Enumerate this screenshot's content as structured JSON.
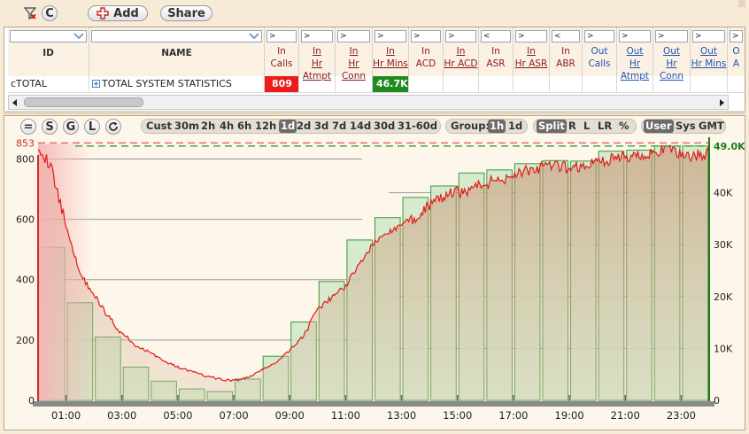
{
  "toolbar": {
    "clear_label": "C",
    "add_label": "Add",
    "share_label": "Share"
  },
  "grid": {
    "columns": [
      {
        "key": "id",
        "label": "ID",
        "filter": "",
        "style": "plain"
      },
      {
        "key": "name",
        "label": "NAME",
        "filter": "",
        "style": "plain"
      },
      {
        "key": "in_calls",
        "label": "In Calls",
        "filter": ">",
        "style": "num"
      },
      {
        "key": "in_hr_attmpt",
        "label": "In Hr Atmpt",
        "filter": ">",
        "style": "num-ul"
      },
      {
        "key": "in_hr_conn",
        "label": "In Hr Conn",
        "filter": ">",
        "style": "num-ul"
      },
      {
        "key": "in_hr_mins",
        "label": "In Hr Mins",
        "filter": ">",
        "style": "num-ul"
      },
      {
        "key": "in_acd",
        "label": "In ACD",
        "filter": ">",
        "style": "num"
      },
      {
        "key": "in_hr_acd",
        "label": "In Hr ACD",
        "filter": ">",
        "style": "num-ul"
      },
      {
        "key": "in_asr",
        "label": "In ASR",
        "filter": "<",
        "style": "num"
      },
      {
        "key": "in_hr_asr",
        "label": "In Hr ASR",
        "filter": ">",
        "style": "num-ul"
      },
      {
        "key": "in_abr",
        "label": "In ABR",
        "filter": "<",
        "style": "num"
      },
      {
        "key": "out_calls",
        "label": "Out Calls",
        "filter": ">",
        "style": "blue"
      },
      {
        "key": "out_hr_attmpt",
        "label": "Out Hr Atmpt",
        "filter": ">",
        "style": "blue-ul"
      },
      {
        "key": "out_hr_conn",
        "label": "Out Hr Conn",
        "filter": ">",
        "style": "blue-ul"
      },
      {
        "key": "out_hr_mins",
        "label": "Out Hr Mins",
        "filter": ">",
        "style": "blue-ul"
      },
      {
        "key": "out_more",
        "label": "O A",
        "filter": ">",
        "style": "blue"
      }
    ],
    "row": {
      "id": "cTOTAL",
      "name": "TOTAL SYSTEM STATISTICS",
      "in_calls": "809",
      "in_hr_mins": "46.7K"
    },
    "colors": {
      "in_calls_bg": "#ee1c1c",
      "in_hr_mins_bg": "#1f8a1f"
    }
  },
  "chart_toolbar": {
    "left_buttons": [
      "=",
      "S",
      "G",
      "L"
    ],
    "ranges": [
      "Cust",
      "30m",
      "2h",
      "4h",
      "6h",
      "12h",
      "1d",
      "2d",
      "3d",
      "7d",
      "14d",
      "30d",
      "31-60d"
    ],
    "selected_range": "1d",
    "group_label": "Group:",
    "group_options": [
      "1h",
      "1d"
    ],
    "selected_group": "1h",
    "split_options": [
      "Split",
      "R",
      "L",
      "LR",
      "%"
    ],
    "selected_split": "Split",
    "tz_options": [
      "User",
      "Sys",
      "GMT"
    ],
    "selected_tz": "User"
  },
  "chart_data": {
    "type": "bar",
    "title": "",
    "x_tick_labels": [
      "01:00",
      "03:00",
      "05:00",
      "07:00",
      "09:00",
      "11:00",
      "13:00",
      "15:00",
      "17:00",
      "19:00",
      "21:00",
      "23:00"
    ],
    "left_axis": {
      "ticks": [
        0,
        200,
        400,
        600,
        800
      ],
      "range": [
        0,
        860
      ],
      "max_marker": 853,
      "max_label": "853",
      "color": "#d42a2a"
    },
    "right_axis": {
      "ticks": [
        "0",
        "10K",
        "20K",
        "30K",
        "40K"
      ],
      "tick_values": [
        0,
        10000,
        20000,
        30000,
        40000
      ],
      "range": [
        0,
        50000
      ],
      "max_marker": 49000,
      "max_label": "49.0K",
      "color": "#1a7a1a"
    },
    "bar_hours": [
      0.5,
      1.5,
      2.5,
      3.5,
      4.5,
      5.5,
      6.5,
      7.5,
      8.5,
      9.5,
      10.5,
      11.5,
      12.5,
      13.5,
      14.5,
      15.5,
      16.5,
      17.5,
      18.5,
      19.5,
      20.5,
      21.5,
      22.5,
      23.5
    ],
    "bars": [
      29500,
      18800,
      12200,
      6400,
      3700,
      2200,
      1700,
      4100,
      8500,
      15100,
      22900,
      30900,
      35200,
      39100,
      41300,
      43800,
      44400,
      45600,
      46200,
      46100,
      48000,
      48200,
      49000,
      49000
    ],
    "line_x_hours": [
      0,
      0.5,
      1,
      1.5,
      2,
      2.5,
      3,
      3.5,
      4,
      4.5,
      5,
      5.5,
      6,
      6.5,
      7,
      7.5,
      8,
      8.5,
      9,
      9.5,
      10,
      10.5,
      11,
      11.5,
      12,
      12.5,
      13,
      13.5,
      14,
      14.5,
      15,
      15.5,
      16,
      16.5,
      17,
      17.5,
      18,
      18.5,
      19,
      19.5,
      20,
      20.5,
      21,
      21.5,
      22,
      22.5,
      23,
      23.5,
      24
    ],
    "line_values": [
      850,
      760,
      580,
      420,
      350,
      280,
      220,
      180,
      160,
      130,
      110,
      95,
      80,
      70,
      65,
      75,
      100,
      125,
      165,
      215,
      300,
      340,
      380,
      455,
      520,
      555,
      580,
      610,
      645,
      675,
      690,
      700,
      720,
      730,
      750,
      760,
      770,
      775,
      770,
      775,
      790,
      800,
      805,
      815,
      820,
      830,
      815,
      810,
      820
    ]
  }
}
